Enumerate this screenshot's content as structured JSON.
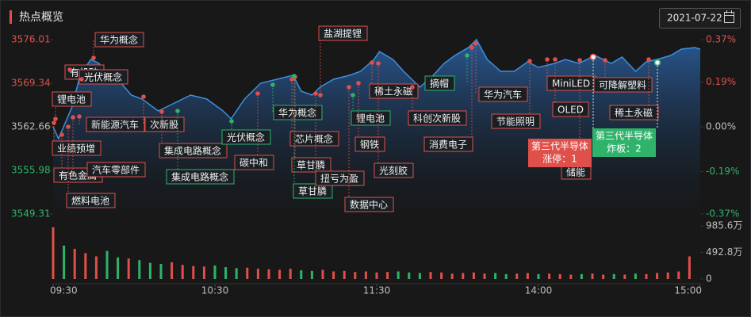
{
  "chart_data": {
    "type": "line",
    "title": "热点概览",
    "date": "2021-07-22",
    "xlim": [
      0,
      240
    ],
    "xticks": [
      {
        "value": 0,
        "label": "09:30"
      },
      {
        "value": 60,
        "label": "10:30"
      },
      {
        "value": 120,
        "label": "11:30"
      },
      {
        "value": 180,
        "label": "14:00"
      },
      {
        "value": 240,
        "label": "15:00"
      }
    ],
    "ylim": [
      3549.31,
      3576.01
    ],
    "yticks": [
      3576.01,
      3569.34,
      3562.66,
      3555.98,
      3549.31
    ],
    "y2lim": [
      -0.37,
      0.37
    ],
    "y2ticks": [
      {
        "value": 0.37,
        "label": "0.37%"
      },
      {
        "value": 0.19,
        "label": "0.19%"
      },
      {
        "value": 0,
        "label": "0.00%"
      },
      {
        "value": -0.19,
        "label": "-0.19%"
      },
      {
        "value": -0.37,
        "label": "-0.37%"
      }
    ],
    "up_color": "#e0504a",
    "down_color": "#2fb36b",
    "series": [
      {
        "color": "#3d8fe0",
        "x": [
          0,
          2,
          7,
          10,
          14,
          17,
          20,
          24,
          29,
          33,
          39,
          45,
          51,
          57,
          63,
          66,
          71,
          77,
          83,
          89,
          92,
          96,
          99,
          104,
          110,
          114,
          119,
          121,
          126,
          130,
          136,
          141,
          145,
          149,
          154,
          157,
          161,
          166,
          171,
          176,
          180,
          186,
          190,
          195,
          201,
          207,
          211,
          216,
          220,
          224,
          229,
          233,
          238,
          240
        ],
        "values": [
          3562.66,
          3560.84,
          3565.69,
          3570.55,
          3572.98,
          3572.37,
          3570.55,
          3569.94,
          3567.51,
          3566.91,
          3565.09,
          3566.3,
          3567.51,
          3566.91,
          3565.09,
          3563.87,
          3566.91,
          3569.33,
          3569.94,
          3570.55,
          3568.12,
          3567.51,
          3568.73,
          3569.94,
          3570.55,
          3571.15,
          3572.98,
          3574.19,
          3572.98,
          3571.15,
          3568.73,
          3570.55,
          3572.37,
          3573.58,
          3574.8,
          3576.01,
          3572.98,
          3571.15,
          3571.15,
          3572.61,
          3571.76,
          3572.37,
          3572.98,
          3572.37,
          3573.58,
          3572.37,
          3573.34,
          3571.15,
          3572.61,
          3572.98,
          3573.58,
          3574.55,
          3574.8,
          3574.55
        ]
      }
    ],
    "volume": {
      "type": "bar",
      "x": [
        0,
        4,
        8,
        12,
        16,
        20,
        24,
        28,
        32,
        36,
        40,
        44,
        48,
        52,
        56,
        60,
        64,
        68,
        72,
        76,
        80,
        84,
        88,
        92,
        96,
        100,
        104,
        108,
        112,
        116,
        120,
        124,
        128,
        132,
        136,
        140,
        144,
        148,
        152,
        156,
        160,
        164,
        168,
        172,
        176,
        180,
        184,
        188,
        192,
        196,
        200,
        204,
        208,
        212,
        216,
        220,
        224,
        228,
        232,
        236
      ],
      "values": [
        960,
        620,
        560,
        480,
        420,
        520,
        400,
        380,
        350,
        300,
        280,
        310,
        260,
        240,
        230,
        250,
        220,
        200,
        210,
        190,
        180,
        170,
        190,
        160,
        150,
        170,
        140,
        150,
        130,
        140,
        120,
        130,
        140,
        120,
        110,
        130,
        120,
        100,
        110,
        120,
        100,
        110,
        90,
        100,
        110,
        90,
        100,
        90,
        80,
        90,
        100,
        80,
        90,
        80,
        100,
        90,
        110,
        120,
        140,
        420
      ],
      "ylim": [
        0,
        985.6
      ],
      "yticks": [
        {
          "value": 985.6,
          "label": "985.6万"
        },
        {
          "value": 492.8,
          "label": "492.8万"
        },
        0
      ]
    },
    "annotations": [
      {
        "label": "华为概念",
        "kind": "up"
      },
      {
        "label": "有机硅",
        "kind": "up"
      },
      {
        "label": "光伏概念",
        "kind": "up"
      },
      {
        "label": "锂电池",
        "kind": "up"
      },
      {
        "label": "新能源汽车",
        "kind": "up"
      },
      {
        "label": "次新股",
        "kind": "up"
      },
      {
        "label": "业绩预增",
        "kind": "up"
      },
      {
        "label": "集成电路概念",
        "kind": "up"
      },
      {
        "label": "有色金属",
        "kind": "up"
      },
      {
        "label": "汽车零部件",
        "kind": "up"
      },
      {
        "label": "燃料电池",
        "kind": "up"
      },
      {
        "label": "集成电路概念",
        "kind": "down"
      },
      {
        "label": "光伏概念",
        "kind": "down"
      },
      {
        "label": "碳中和",
        "kind": "up"
      },
      {
        "label": "华为概念",
        "kind": "down"
      },
      {
        "label": "芯片概念",
        "kind": "up"
      },
      {
        "label": "草甘膦",
        "kind": "up"
      },
      {
        "label": "草甘膦",
        "kind": "down"
      },
      {
        "label": "扭亏为盈",
        "kind": "up"
      },
      {
        "label": "盐湖提锂",
        "kind": "up"
      },
      {
        "label": "数据中心",
        "kind": "up"
      },
      {
        "label": "锂电池",
        "kind": "down"
      },
      {
        "label": "钢铁",
        "kind": "up"
      },
      {
        "label": "稀土永磁",
        "kind": "up"
      },
      {
        "label": "光刻胶",
        "kind": "up"
      },
      {
        "label": "摘帽",
        "kind": "down"
      },
      {
        "label": "科创次新股",
        "kind": "up"
      },
      {
        "label": "消费电子",
        "kind": "up"
      },
      {
        "label": "华为汽车",
        "kind": "up"
      },
      {
        "label": "节能照明",
        "kind": "up"
      },
      {
        "label": "MiniLED",
        "kind": "up"
      },
      {
        "label": "OLED",
        "kind": "up"
      },
      {
        "label": "可降解塑料",
        "kind": "up"
      },
      {
        "label": "稀土永磁",
        "kind": "up"
      },
      {
        "label": "储能",
        "kind": "up"
      },
      {
        "label": "第三代半导体",
        "detail": "涨停：1",
        "kind": "up",
        "filled": true
      },
      {
        "label": "第三代半导体",
        "detail": "炸板：2",
        "kind": "down",
        "filled": true
      }
    ]
  }
}
